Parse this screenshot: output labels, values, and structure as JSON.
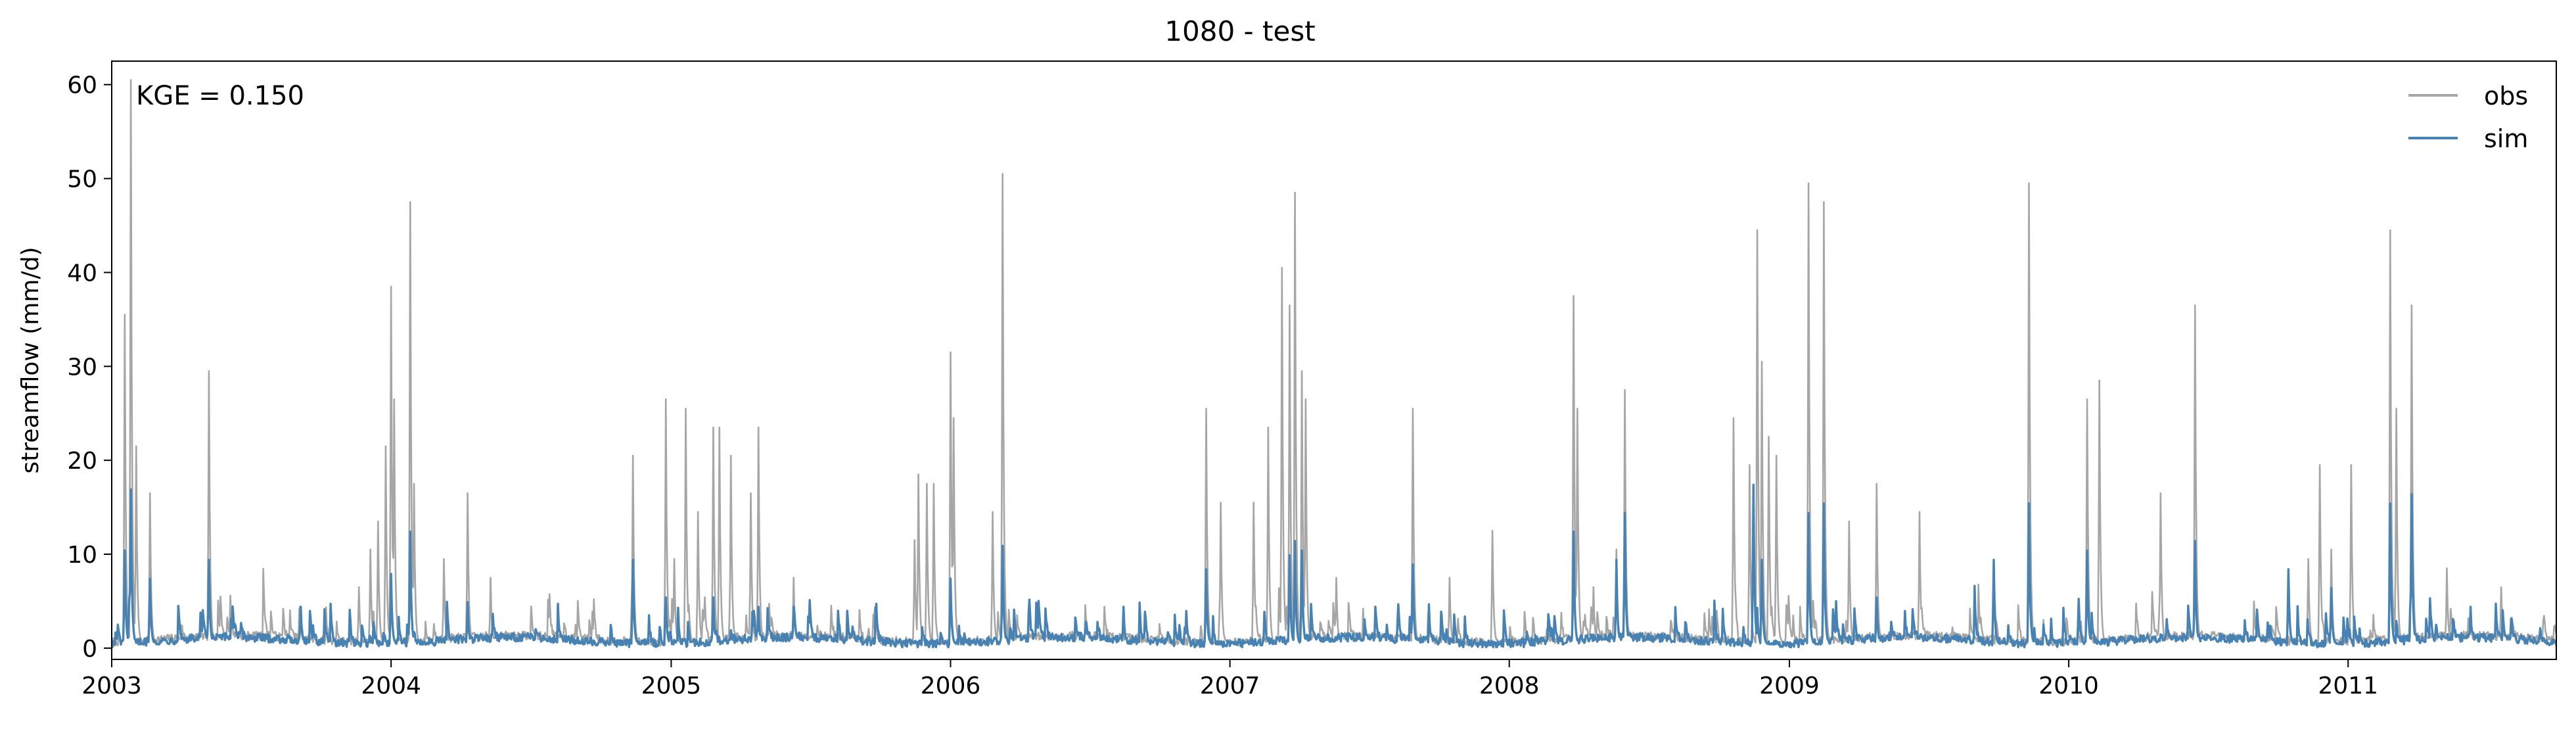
{
  "chart_data": {
    "type": "line",
    "title": "1080 - test",
    "ylabel": "streamflow (mm/d)",
    "xlabel": "",
    "annotation": "KGE = 0.150",
    "xlim": [
      "2003-01-01",
      "2011-09-30"
    ],
    "ylim": [
      -1.2,
      62.5
    ],
    "xticks": [
      "2003",
      "2004",
      "2005",
      "2006",
      "2007",
      "2008",
      "2009",
      "2010",
      "2011"
    ],
    "yticks": [
      0,
      10,
      20,
      30,
      40,
      50,
      60
    ],
    "legend": {
      "position": "top-right",
      "entries": [
        "obs",
        "sim"
      ]
    },
    "grid": false,
    "colors": {
      "obs": "#a6a6a6",
      "sim": "#4682b4"
    },
    "series": [
      {
        "name": "obs",
        "base_level": 1.0,
        "peaks": [
          [
            "2003-01-18",
            35
          ],
          [
            "2003-01-26",
            60
          ],
          [
            "2003-02-02",
            21
          ],
          [
            "2003-02-20",
            16
          ],
          [
            "2003-05-08",
            29
          ],
          [
            "2003-11-20",
            6
          ],
          [
            "2003-12-05",
            10
          ],
          [
            "2003-12-15",
            13
          ],
          [
            "2003-12-25",
            21
          ],
          [
            "2004-01-01",
            38
          ],
          [
            "2004-01-05",
            26
          ],
          [
            "2004-01-26",
            47
          ],
          [
            "2004-01-31",
            17
          ],
          [
            "2004-03-10",
            9
          ],
          [
            "2004-04-10",
            16
          ],
          [
            "2004-05-10",
            7
          ],
          [
            "2004-11-12",
            20
          ],
          [
            "2004-12-25",
            26
          ],
          [
            "2005-01-05",
            9
          ],
          [
            "2005-01-20",
            25
          ],
          [
            "2005-02-05",
            14
          ],
          [
            "2005-02-25",
            23
          ],
          [
            "2005-03-05",
            23
          ],
          [
            "2005-03-20",
            20
          ],
          [
            "2005-04-15",
            16
          ],
          [
            "2005-04-25",
            23
          ],
          [
            "2005-06-10",
            7
          ],
          [
            "2005-11-15",
            11
          ],
          [
            "2005-11-20",
            18
          ],
          [
            "2005-12-01",
            17
          ],
          [
            "2005-12-10",
            17
          ],
          [
            "2006-01-01",
            31
          ],
          [
            "2006-01-05",
            24
          ],
          [
            "2006-02-25",
            14
          ],
          [
            "2006-03-10",
            50
          ],
          [
            "2006-12-01",
            25
          ],
          [
            "2006-12-20",
            15
          ],
          [
            "2007-02-01",
            15
          ],
          [
            "2007-02-20",
            23
          ],
          [
            "2007-03-10",
            40
          ],
          [
            "2007-03-20",
            36
          ],
          [
            "2007-03-27",
            48
          ],
          [
            "2007-04-05",
            29
          ],
          [
            "2007-04-10",
            26
          ],
          [
            "2007-05-20",
            7
          ],
          [
            "2007-08-28",
            25
          ],
          [
            "2007-10-15",
            7
          ],
          [
            "2007-12-10",
            12
          ],
          [
            "2008-03-25",
            37
          ],
          [
            "2008-03-30",
            25
          ],
          [
            "2008-04-20",
            6
          ],
          [
            "2008-05-20",
            10
          ],
          [
            "2008-05-31",
            27
          ],
          [
            "2008-10-20",
            24
          ],
          [
            "2008-11-10",
            19
          ],
          [
            "2008-11-20",
            44
          ],
          [
            "2008-11-26",
            30
          ],
          [
            "2008-12-05",
            22
          ],
          [
            "2008-12-15",
            20
          ],
          [
            "2009-01-26",
            49
          ],
          [
            "2009-02-15",
            47
          ],
          [
            "2009-03-20",
            13
          ],
          [
            "2009-04-25",
            17
          ],
          [
            "2009-06-20",
            14
          ],
          [
            "2009-11-10",
            49
          ],
          [
            "2010-01-25",
            26
          ],
          [
            "2010-02-10",
            28
          ],
          [
            "2010-05-01",
            16
          ],
          [
            "2010-06-15",
            36
          ],
          [
            "2010-11-10",
            9
          ],
          [
            "2010-11-25",
            19
          ],
          [
            "2010-12-10",
            10
          ],
          [
            "2011-01-05",
            19
          ],
          [
            "2011-02-25",
            44
          ],
          [
            "2011-03-05",
            25
          ],
          [
            "2011-03-25",
            36
          ],
          [
            "2011-05-10",
            8
          ],
          [
            "2011-07-20",
            6
          ]
        ]
      },
      {
        "name": "sim",
        "base_level": 0.8,
        "peaks": [
          [
            "2003-01-18",
            10
          ],
          [
            "2003-01-26",
            16.5
          ],
          [
            "2003-02-20",
            7
          ],
          [
            "2003-05-08",
            9
          ],
          [
            "2003-09-05",
            4
          ],
          [
            "2004-01-01",
            7.5
          ],
          [
            "2004-01-26",
            12
          ],
          [
            "2004-04-10",
            4.5
          ],
          [
            "2004-11-12",
            9
          ],
          [
            "2004-12-25",
            5
          ],
          [
            "2005-02-25",
            5
          ],
          [
            "2005-04-25",
            4
          ],
          [
            "2005-06-10",
            4
          ],
          [
            "2006-01-01",
            7
          ],
          [
            "2006-03-10",
            10.5
          ],
          [
            "2006-08-15",
            4
          ],
          [
            "2006-12-01",
            8
          ],
          [
            "2007-03-20",
            9.5
          ],
          [
            "2007-03-27",
            11
          ],
          [
            "2007-04-05",
            10
          ],
          [
            "2007-08-28",
            8.5
          ],
          [
            "2008-03-25",
            12
          ],
          [
            "2008-05-20",
            9
          ],
          [
            "2008-05-31",
            14
          ],
          [
            "2008-11-15",
            17
          ],
          [
            "2008-11-26",
            9
          ],
          [
            "2009-01-26",
            14
          ],
          [
            "2009-02-15",
            15
          ],
          [
            "2009-04-25",
            5
          ],
          [
            "2009-09-25",
            9
          ],
          [
            "2009-11-10",
            15
          ],
          [
            "2010-01-25",
            10
          ],
          [
            "2010-06-15",
            11
          ],
          [
            "2010-10-15",
            8
          ],
          [
            "2010-12-10",
            6
          ],
          [
            "2011-02-25",
            15
          ],
          [
            "2011-03-25",
            16
          ],
          [
            "2011-06-10",
            4
          ]
        ]
      }
    ]
  }
}
